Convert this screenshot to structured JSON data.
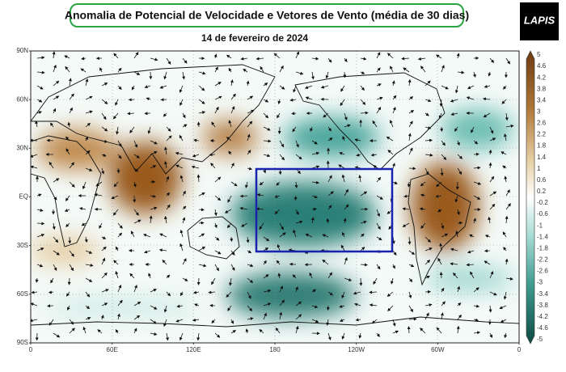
{
  "header": {
    "title": "Anomalia de Potencial de Velocidade e Vetores de Vento (média de 30 dias)",
    "date": "14 de fevereiro de 2024",
    "logo": "LAPIS"
  },
  "map": {
    "lat_labels": [
      "90N",
      "60N",
      "30N",
      "EQ",
      "30S",
      "60S",
      "90S"
    ],
    "lon_labels": [
      "0",
      "60E",
      "120E",
      "180",
      "120W",
      "60W",
      "0"
    ]
  },
  "colorbar": {
    "labels": [
      5,
      4.6,
      4.2,
      3.8,
      3.4,
      3,
      2.6,
      2.2,
      1.8,
      1.4,
      1,
      0.6,
      0.2,
      -0.2,
      -0.6,
      -1,
      -1.4,
      -1.8,
      -2.2,
      -2.6,
      -3,
      -3.4,
      -3.8,
      -4.2,
      -4.6,
      -5
    ]
  }
}
